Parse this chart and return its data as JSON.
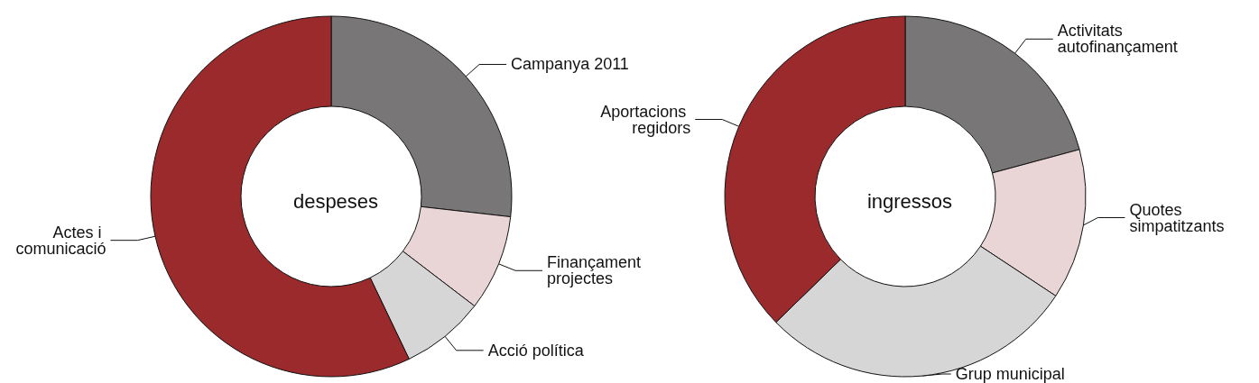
{
  "chart_data": [
    {
      "type": "donut",
      "title": "despeses",
      "categories": [
        "Campanya 2011",
        "Finançament projectes",
        "Acció política",
        "Actes i comunicació"
      ],
      "values": [
        26.8,
        8.6,
        7.5,
        57.1
      ],
      "colors": [
        "#787676",
        "#ead5d6",
        "#d6d6d6",
        "#9b2a2c"
      ],
      "legend": false
    },
    {
      "type": "donut",
      "title": "ingressos",
      "categories": [
        "Activitats autofinançament",
        "Quotes simpatitzants",
        "Grup municipal",
        "Aportacions regidors"
      ],
      "values": [
        20.8,
        13.5,
        28.4,
        37.3
      ],
      "colors": [
        "#787676",
        "#ead5d6",
        "#d6d6d6",
        "#9b2a2c"
      ],
      "legend": false
    }
  ]
}
